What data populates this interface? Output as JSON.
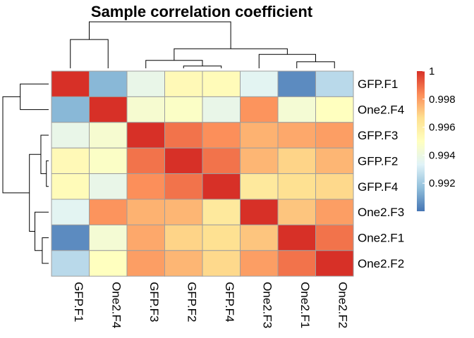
{
  "chart_data": {
    "type": "heatmap",
    "title": "Sample correlation coefficient",
    "rows": [
      "GFP.F1",
      "One2.F4",
      "GFP.F3",
      "GFP.F2",
      "GFP.F4",
      "One2.F3",
      "One2.F1",
      "One2.F2"
    ],
    "columns": [
      "GFP.F1",
      "One2.F4",
      "GFP.F3",
      "GFP.F2",
      "GFP.F4",
      "One2.F3",
      "One2.F1",
      "One2.F2"
    ],
    "values": [
      [
        1.0,
        0.9915,
        0.9938,
        0.9953,
        0.9952,
        0.9935,
        0.9905,
        0.9925
      ],
      [
        0.9915,
        1.0,
        0.9945,
        0.9948,
        0.9938,
        0.9982,
        0.9944,
        0.995
      ],
      [
        0.9938,
        0.9945,
        1.0,
        0.9988,
        0.9983,
        0.9976,
        0.9978,
        0.998
      ],
      [
        0.9953,
        0.9948,
        0.9988,
        1.0,
        0.9988,
        0.9975,
        0.9969,
        0.9975
      ],
      [
        0.9952,
        0.9938,
        0.9983,
        0.9988,
        1.0,
        0.9962,
        0.9966,
        0.9968
      ],
      [
        0.9935,
        0.9982,
        0.9976,
        0.9975,
        0.9962,
        1.0,
        0.9972,
        0.998
      ],
      [
        0.9905,
        0.9944,
        0.9978,
        0.9969,
        0.9966,
        0.9972,
        1.0,
        0.9988
      ],
      [
        0.9925,
        0.995,
        0.998,
        0.9975,
        0.9968,
        0.998,
        0.9988,
        1.0
      ]
    ],
    "color_scale": {
      "min": 0.99,
      "max": 1.0,
      "stops": [
        "#4575B4",
        "#91BFDB",
        "#E0F3F8",
        "#FFFFBF",
        "#FEE090",
        "#FC8D59",
        "#D73027"
      ]
    },
    "legend": {
      "ticks": [
        0.992,
        0.994,
        0.996,
        0.998,
        1
      ],
      "tick_labels": [
        "0.992",
        "0.994",
        "0.996",
        "0.998",
        "1"
      ],
      "position": "right"
    },
    "row_dendrogram": [
      [
        0,
        1
      ],
      [
        6,
        7
      ],
      [
        5,
        9
      ],
      [
        3,
        4
      ],
      [
        2,
        11
      ],
      [
        10,
        12
      ],
      [
        8,
        13
      ]
    ],
    "col_dendrogram": [
      [
        0,
        1
      ],
      [
        6,
        7
      ],
      [
        5,
        9
      ],
      [
        3,
        4
      ],
      [
        2,
        11
      ],
      [
        10,
        12
      ],
      [
        8,
        13
      ]
    ],
    "dendrogram_heights": [
      0.62,
      0.14,
      0.3,
      0.05,
      0.17,
      0.42,
      1.0
    ]
  }
}
